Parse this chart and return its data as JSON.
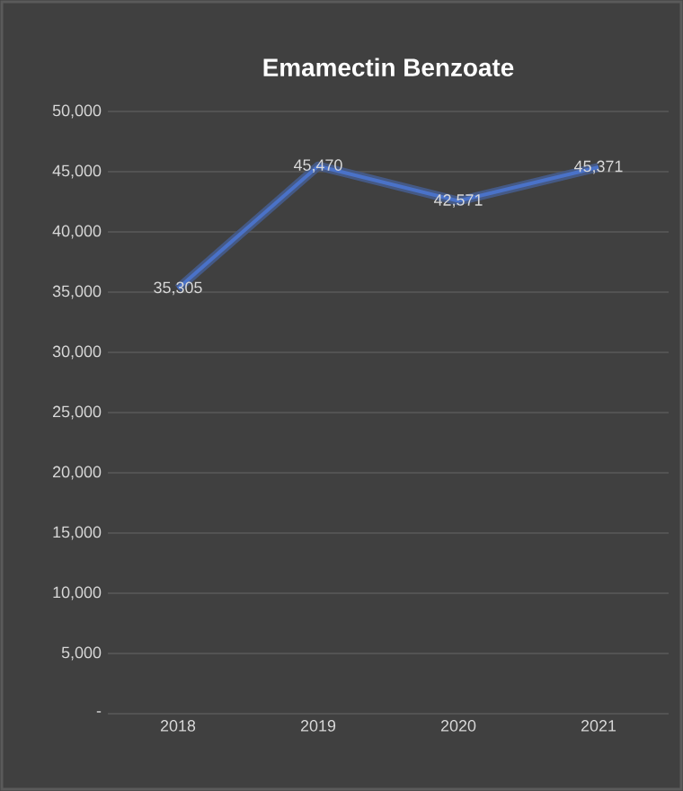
{
  "chart_data": {
    "type": "line",
    "title": "Emamectin Benzoate",
    "categories": [
      "2018",
      "2019",
      "2020",
      "2021"
    ],
    "values": [
      35305,
      45470,
      42571,
      45371
    ],
    "value_labels": [
      "35,305",
      "45,470",
      "42,571",
      "45,371"
    ],
    "color": "#4a72c8",
    "ylim": [
      0,
      50000
    ],
    "yticks": [
      {
        "value": 0,
        "label": "-"
      },
      {
        "value": 5000,
        "label": "5,000"
      },
      {
        "value": 10000,
        "label": "10,000"
      },
      {
        "value": 15000,
        "label": "15,000"
      },
      {
        "value": 20000,
        "label": "20,000"
      },
      {
        "value": 25000,
        "label": "25,000"
      },
      {
        "value": 30000,
        "label": "30,000"
      },
      {
        "value": 35000,
        "label": "35,000"
      },
      {
        "value": 40000,
        "label": "40,000"
      },
      {
        "value": 45000,
        "label": "45,000"
      },
      {
        "value": 50000,
        "label": "50,000"
      }
    ],
    "grid": "y",
    "marker": "none"
  }
}
